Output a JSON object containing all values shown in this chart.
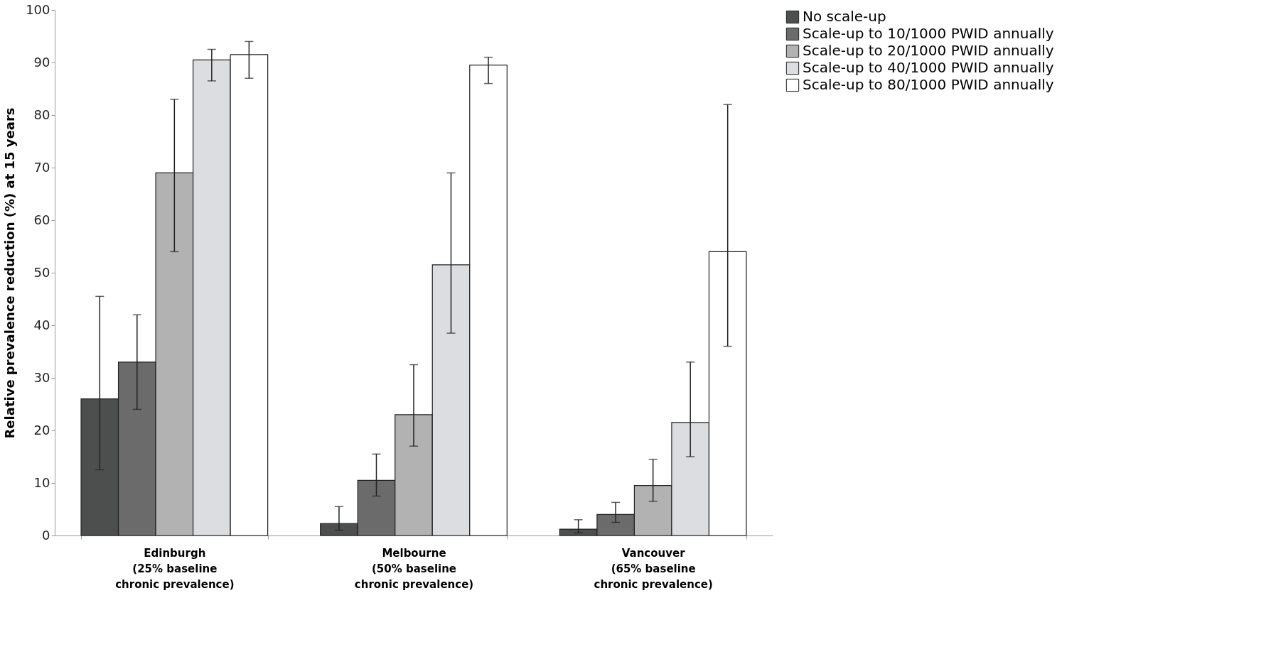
{
  "chart_data": {
    "type": "bar",
    "ylabel": "Relative prevalence reduction (%) at 15 years",
    "categories": [
      "Edinburgh\n(25% baseline\nchronic prevalence)",
      "Melbourne\n(50% baseline\nchronic prevalence)",
      "Vancouver\n(65% baseline\nchronic prevalence)"
    ],
    "ylim": [
      0,
      100
    ],
    "yticks": [
      0,
      10,
      20,
      30,
      40,
      50,
      60,
      70,
      80,
      90,
      100
    ],
    "grid": false,
    "legend": "right",
    "series": [
      {
        "name": "No scale-up",
        "color": "#4d4f4f",
        "values": [
          26,
          2.3,
          1.2
        ],
        "errors": [
          [
            12.5,
            45.5
          ],
          [
            1,
            5.5
          ],
          [
            0.5,
            3
          ]
        ]
      },
      {
        "name": "Scale-up to 10/1000 PWID annually",
        "color": "#6b6b6b",
        "values": [
          33,
          10.5,
          4
        ],
        "errors": [
          [
            24,
            42
          ],
          [
            7.5,
            15.5
          ],
          [
            2.5,
            6.3
          ]
        ]
      },
      {
        "name": "Scale-up to 20/1000 PWID annually",
        "color": "#b2b2b2",
        "values": [
          69,
          23,
          9.5
        ],
        "errors": [
          [
            54,
            83
          ],
          [
            17,
            32.5
          ],
          [
            6.5,
            14.5
          ]
        ]
      },
      {
        "name": "Scale-up to 40/1000 PWID annually",
        "color": "#dcdde0",
        "values": [
          90.5,
          51.5,
          21.5
        ],
        "errors": [
          [
            86.5,
            92.5
          ],
          [
            38.5,
            69
          ],
          [
            15,
            33
          ]
        ]
      },
      {
        "name": "Scale-up to 80/1000 PWID annually",
        "color": "#ffffff",
        "values": [
          91.5,
          89.5,
          54
        ],
        "errors": [
          [
            87,
            94
          ],
          [
            86,
            91
          ],
          [
            36,
            82
          ]
        ]
      }
    ]
  }
}
